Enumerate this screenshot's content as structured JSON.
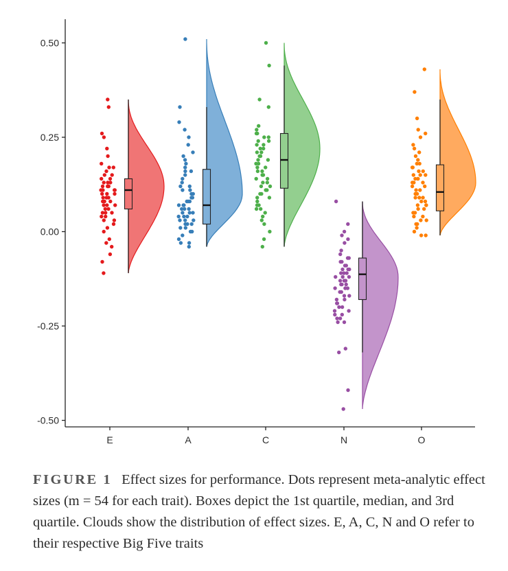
{
  "chart_data": {
    "type": "raincloud",
    "title": "",
    "xlabel": "",
    "ylabel": "",
    "categories": [
      "E",
      "A",
      "C",
      "N",
      "O"
    ],
    "ylim": [
      -0.52,
      0.55
    ],
    "yticks": [
      -0.5,
      -0.25,
      0.0,
      0.25,
      0.5
    ],
    "ytick_labels": [
      "-0.50",
      "-0.25",
      "0.00",
      "0.25",
      "0.50"
    ],
    "grid": false,
    "legend": "none",
    "series": [
      {
        "category": "E",
        "color": "#e41a1c",
        "fill": "#f07575",
        "box": {
          "q1": 0.06,
          "median": 0.11,
          "q3": 0.14
        },
        "whisker": [
          -0.11,
          0.35
        ],
        "cloud_range": [
          -0.11,
          0.35
        ],
        "cloud_mode": 0.12,
        "points": [
          0.35,
          0.33,
          0.26,
          0.25,
          0.22,
          0.2,
          0.18,
          0.17,
          0.17,
          0.16,
          0.15,
          0.15,
          0.14,
          0.14,
          0.13,
          0.13,
          0.13,
          0.12,
          0.12,
          0.12,
          0.11,
          0.11,
          0.11,
          0.11,
          0.1,
          0.1,
          0.1,
          0.09,
          0.09,
          0.09,
          0.08,
          0.08,
          0.08,
          0.07,
          0.07,
          0.07,
          0.06,
          0.06,
          0.05,
          0.05,
          0.05,
          0.04,
          0.04,
          0.03,
          0.03,
          0.02,
          0.01,
          0.0,
          -0.02,
          -0.03,
          -0.04,
          -0.06,
          -0.08,
          -0.11
        ]
      },
      {
        "category": "A",
        "color": "#377eb8",
        "fill": "#7fb0d9",
        "box": {
          "q1": 0.02,
          "median": 0.07,
          "q3": 0.165
        },
        "whisker": [
          -0.04,
          0.33
        ],
        "cloud_range": [
          -0.04,
          0.51
        ],
        "cloud_mode": 0.1,
        "points": [
          0.51,
          0.33,
          0.29,
          0.27,
          0.25,
          0.23,
          0.21,
          0.2,
          0.19,
          0.18,
          0.17,
          0.16,
          0.16,
          0.15,
          0.14,
          0.13,
          0.12,
          0.12,
          0.11,
          0.11,
          0.1,
          0.1,
          0.09,
          0.09,
          0.08,
          0.08,
          0.08,
          0.07,
          0.07,
          0.07,
          0.06,
          0.06,
          0.06,
          0.05,
          0.05,
          0.05,
          0.04,
          0.04,
          0.04,
          0.03,
          0.03,
          0.03,
          0.02,
          0.02,
          0.02,
          0.01,
          0.01,
          0.0,
          0.0,
          -0.01,
          -0.02,
          -0.03,
          -0.03,
          -0.04
        ]
      },
      {
        "category": "C",
        "color": "#4daf4a",
        "fill": "#93cf8f",
        "box": {
          "q1": 0.115,
          "median": 0.19,
          "q3": 0.26
        },
        "whisker": [
          -0.04,
          0.44
        ],
        "cloud_range": [
          -0.04,
          0.5
        ],
        "cloud_mode": 0.22,
        "points": [
          0.5,
          0.44,
          0.35,
          0.33,
          0.28,
          0.27,
          0.26,
          0.26,
          0.25,
          0.25,
          0.24,
          0.24,
          0.23,
          0.23,
          0.22,
          0.22,
          0.21,
          0.21,
          0.2,
          0.2,
          0.19,
          0.19,
          0.18,
          0.18,
          0.17,
          0.17,
          0.16,
          0.16,
          0.15,
          0.15,
          0.14,
          0.14,
          0.13,
          0.13,
          0.12,
          0.12,
          0.11,
          0.11,
          0.1,
          0.1,
          0.09,
          0.09,
          0.08,
          0.07,
          0.07,
          0.06,
          0.06,
          0.05,
          0.04,
          0.03,
          0.02,
          0.0,
          -0.02,
          -0.04
        ]
      },
      {
        "category": "N",
        "color": "#984ea3",
        "fill": "#c394cb",
        "box": {
          "q1": -0.18,
          "median": -0.113,
          "q3": -0.07
        },
        "whisker": [
          -0.32,
          0.08
        ],
        "cloud_range": [
          -0.47,
          0.08
        ],
        "cloud_mode": -0.12,
        "points": [
          0.08,
          0.02,
          0.0,
          -0.01,
          -0.02,
          -0.03,
          -0.05,
          -0.07,
          -0.07,
          -0.08,
          -0.08,
          -0.09,
          -0.09,
          -0.1,
          -0.1,
          -0.1,
          -0.11,
          -0.11,
          -0.11,
          -0.12,
          -0.12,
          -0.12,
          -0.13,
          -0.13,
          -0.13,
          -0.14,
          -0.14,
          -0.14,
          -0.15,
          -0.15,
          -0.15,
          -0.16,
          -0.16,
          -0.17,
          -0.17,
          -0.18,
          -0.18,
          -0.19,
          -0.19,
          -0.2,
          -0.2,
          -0.21,
          -0.21,
          -0.22,
          -0.22,
          -0.23,
          -0.23,
          -0.24,
          -0.24,
          -0.31,
          -0.32,
          -0.42,
          -0.47,
          -0.06
        ]
      },
      {
        "category": "O",
        "color": "#ff7f00",
        "fill": "#ffaa5f",
        "box": {
          "q1": 0.055,
          "median": 0.105,
          "q3": 0.177
        },
        "whisker": [
          -0.01,
          0.35
        ],
        "cloud_range": [
          -0.01,
          0.43
        ],
        "cloud_mode": 0.13,
        "points": [
          0.43,
          0.37,
          0.3,
          0.27,
          0.26,
          0.25,
          0.23,
          0.22,
          0.21,
          0.2,
          0.19,
          0.18,
          0.18,
          0.17,
          0.17,
          0.16,
          0.16,
          0.15,
          0.15,
          0.15,
          0.14,
          0.14,
          0.14,
          0.13,
          0.13,
          0.13,
          0.12,
          0.12,
          0.11,
          0.11,
          0.1,
          0.1,
          0.09,
          0.09,
          0.09,
          0.08,
          0.08,
          0.07,
          0.07,
          0.07,
          0.06,
          0.06,
          0.05,
          0.05,
          0.04,
          0.04,
          0.03,
          0.03,
          0.02,
          0.02,
          0.01,
          0.0,
          -0.01,
          -0.01
        ]
      }
    ]
  },
  "caption": {
    "label": "FIGURE 1",
    "text": "Effect sizes for performance. Dots represent meta-analytic effect sizes (m = 54 for each trait). Boxes depict the 1st quartile, median, and 3rd quartile. Clouds show the distribution of effect sizes. E, A, C, N and O refer to their respective Big Five traits"
  }
}
